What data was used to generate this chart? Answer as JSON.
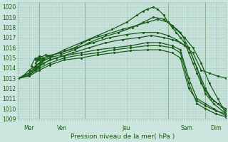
{
  "title": "Pression niveau de la mer( hPa )",
  "bg_color": "#cce5de",
  "grid_color": "#a8ccbf",
  "line_color": "#1a5c1a",
  "ylim": [
    1009,
    1020.5
  ],
  "yticks": [
    1009,
    1010,
    1011,
    1012,
    1013,
    1014,
    1015,
    1016,
    1017,
    1018,
    1019,
    1020
  ],
  "xtick_labels": [
    "Mer",
    "Ven",
    "",
    "Jeu",
    "",
    "",
    "Sam",
    "",
    "Dim",
    ""
  ],
  "lines": [
    {
      "x": [
        0.0,
        0.02,
        0.05,
        0.08,
        0.1,
        0.12,
        0.1,
        0.08,
        0.1,
        0.13,
        0.16,
        0.22,
        0.3,
        0.38,
        0.45,
        0.52,
        0.57,
        0.6,
        0.62,
        0.65,
        0.67,
        0.7,
        0.72,
        0.74,
        0.76,
        0.78,
        0.8,
        0.82,
        0.84,
        0.86,
        0.88,
        0.9,
        0.92,
        0.94,
        0.96,
        0.98,
        1.0
      ],
      "y": [
        1013.0,
        1013.2,
        1013.8,
        1014.2,
        1014.5,
        1015.0,
        1015.2,
        1014.8,
        1015.0,
        1015.3,
        1015.2,
        1015.8,
        1016.5,
        1017.2,
        1017.8,
        1018.5,
        1019.2,
        1019.6,
        1019.8,
        1020.0,
        1019.8,
        1019.2,
        1018.5,
        1018.0,
        1017.5,
        1017.0,
        1016.5,
        1015.5,
        1014.5,
        1013.5,
        1012.5,
        1011.8,
        1011.2,
        1010.8,
        1010.5,
        1010.2,
        1010.0
      ]
    },
    {
      "x": [
        0.0,
        0.05,
        0.1,
        0.15,
        0.2,
        0.27,
        0.34,
        0.4,
        0.48,
        0.55,
        0.6,
        0.65,
        0.7,
        0.74,
        0.78,
        0.82,
        0.86,
        0.9,
        0.93,
        0.96,
        1.0
      ],
      "y": [
        1013.0,
        1013.5,
        1014.5,
        1015.0,
        1015.3,
        1015.8,
        1016.5,
        1017.0,
        1017.5,
        1018.0,
        1018.5,
        1019.0,
        1018.8,
        1018.2,
        1017.5,
        1016.0,
        1014.0,
        1012.0,
        1011.0,
        1010.5,
        1009.8
      ]
    },
    {
      "x": [
        0.0,
        0.05,
        0.1,
        0.15,
        0.2,
        0.27,
        0.34,
        0.42,
        0.5,
        0.57,
        0.62,
        0.67,
        0.72,
        0.76,
        0.8,
        0.84,
        0.88,
        0.92,
        0.96,
        1.0
      ],
      "y": [
        1013.0,
        1013.5,
        1014.5,
        1015.2,
        1015.5,
        1016.0,
        1016.8,
        1017.3,
        1017.8,
        1018.2,
        1018.5,
        1018.8,
        1018.5,
        1017.8,
        1017.0,
        1016.0,
        1014.5,
        1012.5,
        1011.0,
        1009.5
      ]
    },
    {
      "x": [
        0.0,
        0.05,
        0.1,
        0.12,
        0.1,
        0.08,
        0.1,
        0.14,
        0.2,
        0.28,
        0.36,
        0.44,
        0.52,
        0.6,
        0.67,
        0.72,
        0.76,
        0.8,
        0.84,
        0.88,
        0.92,
        0.96,
        1.0
      ],
      "y": [
        1013.0,
        1013.5,
        1014.2,
        1014.8,
        1015.0,
        1014.5,
        1014.8,
        1015.2,
        1015.5,
        1016.0,
        1016.5,
        1017.0,
        1017.3,
        1017.5,
        1017.5,
        1017.2,
        1016.8,
        1016.2,
        1015.5,
        1013.8,
        1013.5,
        1013.2,
        1013.0
      ]
    },
    {
      "x": [
        0.0,
        0.05,
        0.08,
        0.12,
        0.08,
        0.06,
        0.08,
        0.12,
        0.18,
        0.26,
        0.34,
        0.42,
        0.5,
        0.58,
        0.64,
        0.7,
        0.74,
        0.78,
        0.82,
        0.86,
        0.9,
        0.94,
        1.0
      ],
      "y": [
        1013.0,
        1013.3,
        1013.8,
        1014.5,
        1015.0,
        1014.2,
        1014.0,
        1014.5,
        1015.0,
        1015.5,
        1016.0,
        1016.5,
        1016.8,
        1017.0,
        1017.2,
        1017.0,
        1016.8,
        1016.5,
        1016.0,
        1014.0,
        1011.5,
        1010.5,
        1009.5
      ]
    },
    {
      "x": [
        0.0,
        0.05,
        0.1,
        0.15,
        0.22,
        0.3,
        0.38,
        0.46,
        0.54,
        0.62,
        0.68,
        0.74,
        0.78,
        0.82,
        0.86,
        0.9,
        0.94,
        1.0
      ],
      "y": [
        1013.0,
        1013.5,
        1014.2,
        1014.8,
        1015.2,
        1015.5,
        1015.8,
        1016.0,
        1016.2,
        1016.5,
        1016.5,
        1016.2,
        1015.8,
        1013.0,
        1011.0,
        1010.5,
        1010.0,
        1009.3
      ]
    },
    {
      "x": [
        0.0,
        0.05,
        0.1,
        0.15,
        0.22,
        0.3,
        0.38,
        0.46,
        0.54,
        0.62,
        0.68,
        0.74,
        0.78,
        0.82,
        0.86,
        0.9,
        0.95,
        1.0
      ],
      "y": [
        1013.0,
        1013.3,
        1014.0,
        1014.5,
        1015.0,
        1015.3,
        1015.5,
        1015.8,
        1016.0,
        1016.2,
        1016.2,
        1016.0,
        1015.5,
        1012.5,
        1010.5,
        1010.0,
        1009.5,
        1009.2
      ]
    },
    {
      "x": [
        0.0,
        0.05,
        0.1,
        0.15,
        0.22,
        0.3,
        0.38,
        0.46,
        0.54,
        0.62,
        0.68,
        0.74,
        0.78,
        0.82,
        0.86,
        0.9,
        0.95,
        1.0
      ],
      "y": [
        1013.0,
        1013.2,
        1013.8,
        1014.3,
        1014.8,
        1015.0,
        1015.3,
        1015.5,
        1015.7,
        1015.8,
        1015.8,
        1015.5,
        1015.0,
        1012.0,
        1010.8,
        1010.3,
        1009.8,
        1009.5
      ]
    }
  ],
  "vline_x": [
    0.0,
    0.1,
    0.32,
    0.72,
    0.9
  ],
  "marker": ".",
  "markersize": 2.5,
  "linewidth": 0.9
}
